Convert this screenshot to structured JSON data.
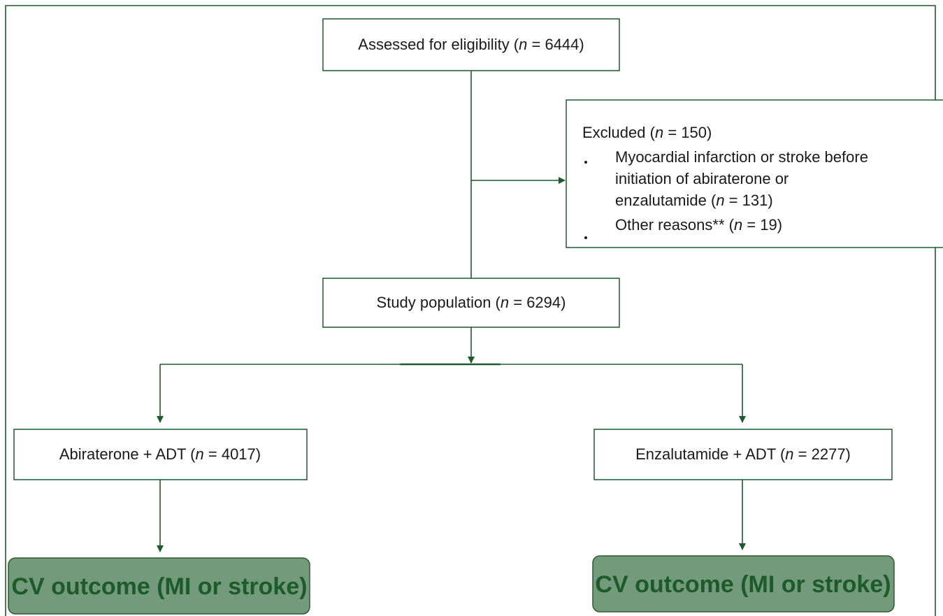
{
  "nodes": [
    {
      "parts": [
        "Assessed for eligibility (",
        "n",
        " = 6444)"
      ]
    },
    {
      "parts": [
        "Study population (",
        "n",
        " = 6294)"
      ]
    },
    {
      "parts": [
        "Abiraterone + ADT (",
        "n",
        " = 4017)"
      ]
    },
    {
      "parts": [
        "Enzalutamide + ADT (",
        "n",
        " = 2277)"
      ]
    }
  ],
  "excluded": {
    "title": [
      "Excluded (",
      "n",
      " = 150)"
    ],
    "items": [
      [
        [
          "Myocardial infarction or stroke before"
        ],
        [
          "initiation of abiraterone or"
        ],
        [
          "enzalutamide (",
          "n",
          " = 131)"
        ]
      ],
      [
        [
          "Other reasons** (",
          "n",
          " = 19)"
        ]
      ]
    ]
  },
  "outcomes": [
    "CV outcome (MI or stroke)",
    "CV outcome (MI or stroke)"
  ]
}
